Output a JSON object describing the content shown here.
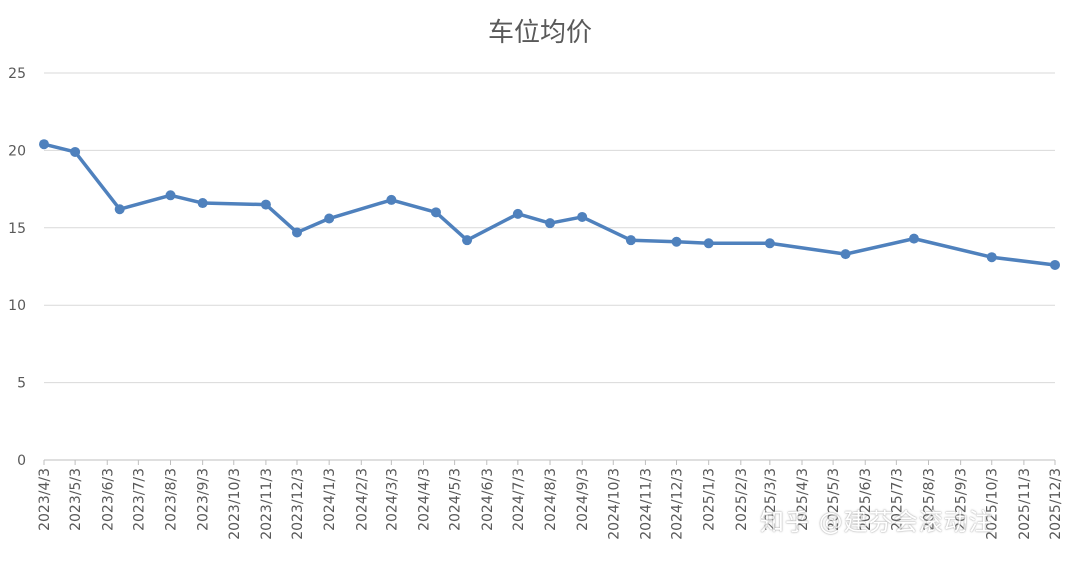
{
  "chart_data": {
    "type": "line",
    "title": "车位均价",
    "xlabel": "",
    "ylabel": "",
    "ylim": [
      0,
      25
    ],
    "yticks": [
      0,
      5,
      10,
      15,
      20,
      25
    ],
    "grid": true,
    "categories": [
      "2023/4/3",
      "2023/5/3",
      "2023/6/3",
      "2023/7/3",
      "2023/8/3",
      "2023/9/3",
      "2023/10/3",
      "2023/11/3",
      "2023/12/3",
      "2024/1/3",
      "2024/2/3",
      "2024/3/3",
      "2024/4/3",
      "2024/5/3",
      "2024/6/3",
      "2024/7/3",
      "2024/8/3",
      "2024/9/3",
      "2024/10/3",
      "2024/11/3",
      "2024/12/3",
      "2025/1/3",
      "2025/2/3",
      "2025/3/3",
      "2025/4/3",
      "2025/5/3",
      "2025/6/3",
      "2025/7/3",
      "2025/8/3",
      "2025/9/3",
      "2025/10/3",
      "2025/11/3",
      "2025/12/3"
    ],
    "series": [
      {
        "color": "#4f81bd",
        "points": [
          {
            "x": "2023/4/3",
            "y": 20.4
          },
          {
            "x": "2023/5/3",
            "y": 19.9
          },
          {
            "x": "2023/6/15",
            "y": 16.2
          },
          {
            "x": "2023/8/3",
            "y": 17.1
          },
          {
            "x": "2023/9/3",
            "y": 16.6
          },
          {
            "x": "2023/11/3",
            "y": 16.5
          },
          {
            "x": "2023/12/3",
            "y": 14.7
          },
          {
            "x": "2024/1/3",
            "y": 15.6
          },
          {
            "x": "2024/3/3",
            "y": 16.8
          },
          {
            "x": "2024/4/15",
            "y": 16.0
          },
          {
            "x": "2024/5/15",
            "y": 14.2
          },
          {
            "x": "2024/7/3",
            "y": 15.9
          },
          {
            "x": "2024/8/3",
            "y": 15.3
          },
          {
            "x": "2024/9/3",
            "y": 15.7
          },
          {
            "x": "2024/10/20",
            "y": 14.2
          },
          {
            "x": "2024/12/3",
            "y": 14.1
          },
          {
            "x": "2025/1/3",
            "y": 14.0
          },
          {
            "x": "2025/3/3",
            "y": 14.0
          },
          {
            "x": "2025/5/15",
            "y": 13.3
          },
          {
            "x": "2025/7/20",
            "y": 14.3
          },
          {
            "x": "2025/10/3",
            "y": 13.1
          },
          {
            "x": "2025/12/3",
            "y": 12.6
          }
        ]
      }
    ]
  },
  "watermark": {
    "text": "知乎 @建芬会滚动注"
  }
}
